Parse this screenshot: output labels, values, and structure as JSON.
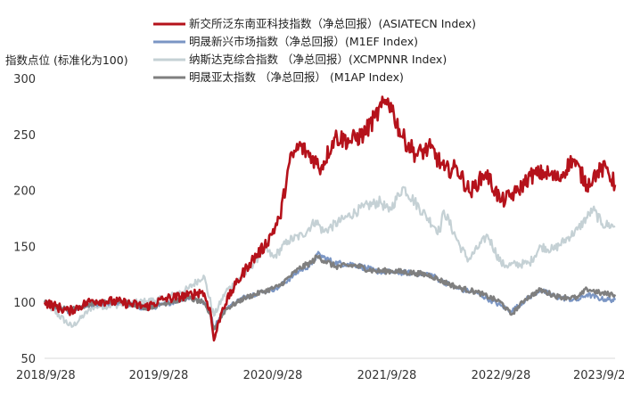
{
  "chart_data": {
    "type": "line",
    "title": "",
    "ylabel": "指数点位 (标准化为100)",
    "xlabel": "",
    "ylim": [
      50,
      300
    ],
    "yticks": [
      50,
      100,
      150,
      200,
      250,
      300
    ],
    "xlim": [
      "2018-09-28",
      "2023-09-28"
    ],
    "xtick_labels": [
      "2018/9/28",
      "2019/9/28",
      "2020/9/28",
      "2021/9/28",
      "2022/9/28",
      "2023/9/2"
    ],
    "grid": {
      "y": false,
      "x": false,
      "baseline": true
    },
    "legend_position": "top",
    "series": [
      {
        "name": "新交所泛东南亚科技指数（净总回报）(ASIATECN Index)",
        "color": "#b5121b",
        "x": [
          "2018-09-28",
          "2018-12-15",
          "2019-03-01",
          "2019-06-01",
          "2019-08-20",
          "2019-10-15",
          "2019-12-31",
          "2020-02-15",
          "2020-03-10",
          "2020-03-23",
          "2020-04-20",
          "2020-06-01",
          "2020-07-15",
          "2020-09-01",
          "2020-10-20",
          "2020-11-20",
          "2020-12-20",
          "2021-01-31",
          "2021-03-01",
          "2021-04-15",
          "2021-06-01",
          "2021-07-15",
          "2021-08-20",
          "2021-10-01",
          "2021-10-20",
          "2021-11-15",
          "2021-12-31",
          "2022-02-15",
          "2022-03-31",
          "2022-05-10",
          "2022-06-20",
          "2022-08-10",
          "2022-09-28",
          "2022-11-15",
          "2022-12-31",
          "2023-02-15",
          "2023-03-31",
          "2023-05-15",
          "2023-06-30",
          "2023-07-31",
          "2023-08-31",
          "2023-09-28"
        ],
        "values": [
          100,
          92,
          102,
          100,
          96,
          103,
          106,
          110,
          95,
          66,
          95,
          116,
          135,
          150,
          175,
          225,
          240,
          230,
          220,
          248,
          244,
          250,
          265,
          282,
          268,
          248,
          232,
          238,
          218,
          220,
          198,
          216,
          190,
          198,
          213,
          216,
          210,
          228,
          205,
          216,
          220,
          205
        ]
      },
      {
        "name": "明晟新兴市场指数（净总回报）(M1EF Index)",
        "color": "#7b96c4",
        "x": [
          "2018-09-28",
          "2018-12-15",
          "2019-03-01",
          "2019-06-01",
          "2019-08-20",
          "2019-10-15",
          "2019-12-31",
          "2020-02-15",
          "2020-03-10",
          "2020-03-23",
          "2020-05-01",
          "2020-06-30",
          "2020-09-01",
          "2020-10-15",
          "2020-12-20",
          "2021-01-31",
          "2021-02-17",
          "2021-04-15",
          "2021-06-15",
          "2021-08-20",
          "2021-10-15",
          "2021-12-31",
          "2022-02-15",
          "2022-03-15",
          "2022-05-15",
          "2022-07-15",
          "2022-09-28",
          "2022-10-31",
          "2022-12-15",
          "2023-01-31",
          "2023-03-31",
          "2023-05-31",
          "2023-06-30",
          "2023-08-15",
          "2023-09-28"
        ],
        "values": [
          100,
          92,
          98,
          100,
          94,
          98,
          104,
          101,
          92,
          78,
          95,
          105,
          110,
          113,
          128,
          134,
          143,
          135,
          134,
          128,
          127,
          126,
          125,
          120,
          112,
          108,
          97,
          92,
          102,
          111,
          104,
          102,
          107,
          103,
          102
        ]
      },
      {
        "name": "纳斯达克综合指数 （净总回报）(XCMPNNR Index)",
        "color": "#c5d1d5",
        "x": [
          "2018-09-28",
          "2018-12-24",
          "2019-03-01",
          "2019-06-01",
          "2019-08-20",
          "2019-10-15",
          "2019-12-31",
          "2020-02-19",
          "2020-03-23",
          "2020-05-01",
          "2020-06-30",
          "2020-09-02",
          "2020-09-30",
          "2020-11-15",
          "2020-12-31",
          "2021-02-12",
          "2021-03-08",
          "2021-05-15",
          "2021-07-15",
          "2021-09-07",
          "2021-10-04",
          "2021-11-19",
          "2022-01-31",
          "2022-03-15",
          "2022-03-29",
          "2022-05-20",
          "2022-06-16",
          "2022-08-16",
          "2022-09-28",
          "2022-10-13",
          "2022-12-28",
          "2023-02-02",
          "2023-03-15",
          "2023-05-31",
          "2023-07-19",
          "2023-08-18",
          "2023-09-28"
        ],
        "values": [
          100,
          78,
          96,
          98,
          101,
          103,
          112,
          124,
          88,
          110,
          125,
          148,
          140,
          155,
          160,
          173,
          163,
          175,
          185,
          190,
          181,
          203,
          177,
          163,
          182,
          150,
          138,
          160,
          135,
          133,
          135,
          150,
          147,
          165,
          183,
          170,
          168
        ]
      },
      {
        "name": "明晟亚太指数 （净总回报） (M1AP Index)",
        "color": "#7f7f7f",
        "x": [
          "2018-09-28",
          "2018-12-15",
          "2019-03-01",
          "2019-06-01",
          "2019-08-20",
          "2019-10-15",
          "2019-12-31",
          "2020-02-15",
          "2020-03-10",
          "2020-03-23",
          "2020-05-01",
          "2020-06-30",
          "2020-09-01",
          "2020-10-15",
          "2020-12-20",
          "2021-01-31",
          "2021-02-17",
          "2021-04-15",
          "2021-06-15",
          "2021-08-20",
          "2021-10-15",
          "2021-12-31",
          "2022-02-15",
          "2022-03-15",
          "2022-05-15",
          "2022-07-15",
          "2022-09-28",
          "2022-10-31",
          "2022-12-15",
          "2023-01-31",
          "2023-03-31",
          "2023-05-31",
          "2023-06-30",
          "2023-08-15",
          "2023-09-28"
        ],
        "values": [
          100,
          93,
          99,
          101,
          95,
          99,
          104,
          100,
          90,
          76,
          94,
          104,
          110,
          114,
          130,
          136,
          141,
          132,
          133,
          128,
          128,
          126,
          124,
          120,
          113,
          109,
          100,
          89,
          103,
          111,
          105,
          104,
          112,
          108,
          107
        ]
      }
    ]
  }
}
